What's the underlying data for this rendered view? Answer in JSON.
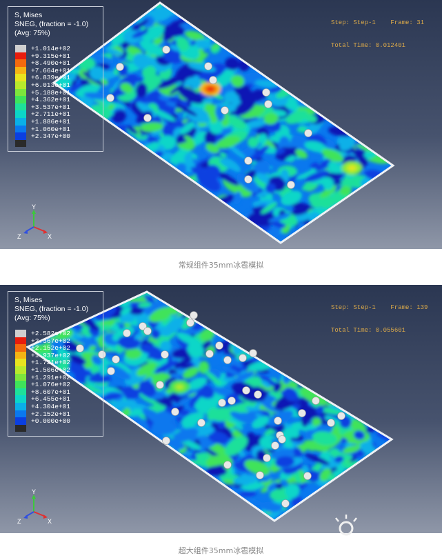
{
  "colors": {
    "contour": [
      "#0a14b4",
      "#0b3fe0",
      "#0a78ee",
      "#0ab0e8",
      "#0cd6c8",
      "#1ee09a",
      "#3fe35a",
      "#7de63c",
      "#b8ea2c",
      "#e8e41f",
      "#f5b414",
      "#f46a0e",
      "#e81c0c"
    ],
    "plate_edge": "#eef1f5",
    "ball": "#e8e8e8",
    "info_text": "#d9a84a"
  },
  "panels": [
    {
      "legend": {
        "title_line1": "S, Mises",
        "title_line2": "SNEG, (fraction = -1.0)",
        "title_line3": "(Avg: 75%)",
        "values": [
          "+1.014e+02",
          "+9.315e+01",
          "+8.490e+01",
          "+7.664e+01",
          "+6.839e+01",
          "+6.013e+01",
          "+5.188e+01",
          "+4.362e+01",
          "+3.537e+01",
          "+2.711e+01",
          "+1.886e+01",
          "+1.060e+01",
          "+2.347e+00"
        ]
      },
      "step_line": "Step: Step-1    Frame: 31",
      "time_line": "Total Time: 0.012401",
      "triad": {
        "y": "Y",
        "z": "Z",
        "x": "X"
      },
      "caption": "常规组件35mm冰雹模拟"
    },
    {
      "legend": {
        "title_line1": "S, Mises",
        "title_line2": "SNEG, (fraction = -1.0)",
        "title_line3": "(Avg: 75%)",
        "values": [
          "+2.582e+02",
          "+2.367e+02",
          "+2.152e+02",
          "+1.937e+02",
          "+1.721e+02",
          "+1.506e+02",
          "+1.291e+02",
          "+1.076e+02",
          "+8.607e+01",
          "+6.455e+01",
          "+4.304e+01",
          "+2.152e+01",
          "+0.000e+00"
        ]
      },
      "step_line": "Step: Step-1    Frame: 139",
      "time_line": "Total Time: 0.055601",
      "triad": {
        "y": "Y",
        "z": "Z",
        "x": "X"
      },
      "caption": "超大组件35mm冰雹模拟"
    }
  ]
}
